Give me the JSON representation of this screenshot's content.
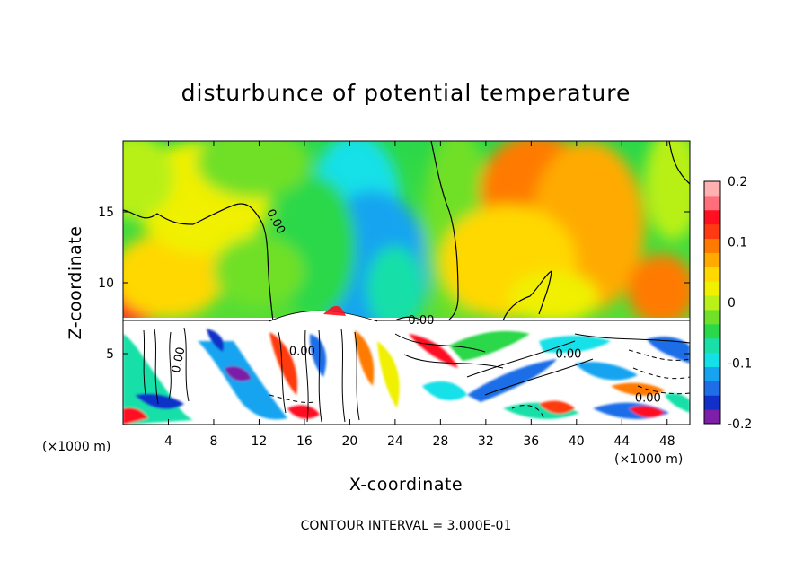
{
  "chart_data": {
    "type": "heatmap",
    "title": "disturbunce of potential temperature",
    "xlabel": "X-coordinate",
    "ylabel": "Z-coordinate",
    "x_unit": "(×1000 m)",
    "xlim": [
      0,
      50
    ],
    "ylim": [
      0,
      20
    ],
    "x_ticks": [
      {
        "value": 4,
        "label": "4"
      },
      {
        "value": 8,
        "label": "8"
      },
      {
        "value": 12,
        "label": "12"
      },
      {
        "value": 16,
        "label": "16"
      },
      {
        "value": 20,
        "label": "20"
      },
      {
        "value": 24,
        "label": "24"
      },
      {
        "value": 28,
        "label": "28"
      },
      {
        "value": 32,
        "label": "32"
      },
      {
        "value": 36,
        "label": "36"
      },
      {
        "value": 40,
        "label": "40"
      },
      {
        "value": 44,
        "label": "44"
      },
      {
        "value": 48,
        "label": "48"
      }
    ],
    "y_ticks": [
      {
        "value": 5,
        "label": "5"
      },
      {
        "value": 10,
        "label": "10"
      },
      {
        "value": 15,
        "label": "15"
      }
    ],
    "colorbar": {
      "range": [
        -0.2,
        0.2
      ],
      "ticks": [
        {
          "value": 0.2,
          "label": "0.2"
        },
        {
          "value": 0.1,
          "label": "0.1"
        },
        {
          "value": 0,
          "label": "0"
        },
        {
          "value": -0.1,
          "label": "-0.1"
        },
        {
          "value": -0.2,
          "label": "-0.2"
        }
      ],
      "colors": [
        "#7d1fa8",
        "#1030c8",
        "#1f6ee8",
        "#16a4f0",
        "#14e0e8",
        "#18e0a8",
        "#2ad84a",
        "#70e028",
        "#b8f018",
        "#f0f000",
        "#ffd800",
        "#ffaa00",
        "#ff7a00",
        "#ff3a10",
        "#ff0f20",
        "#ff6e7a",
        "#ffb0b0"
      ]
    },
    "contour_labels": [
      {
        "text": "0.00",
        "x": 13.2,
        "y": 14.2,
        "angle": 62
      },
      {
        "text": "0.00",
        "x": 5.2,
        "y": 4.5,
        "angle": -78
      },
      {
        "text": "0.00",
        "x": 15.8,
        "y": 4.9,
        "angle": 0
      },
      {
        "text": "0.00",
        "x": 26.3,
        "y": 7.1,
        "angle": 0
      },
      {
        "text": "0.00",
        "x": 39.3,
        "y": 4.7,
        "angle": 0
      },
      {
        "text": "0.00",
        "x": 46.3,
        "y": 1.6,
        "angle": 0
      }
    ],
    "blobs": [
      {
        "x": 20.5,
        "y": 15.5,
        "rx": 4.0,
        "ry": 5.0,
        "v": -0.09
      },
      {
        "x": 22.0,
        "y": 11.0,
        "rx": 5.0,
        "ry": 5.5,
        "v": -0.12
      },
      {
        "x": 24.0,
        "y": 9.6,
        "rx": 2.5,
        "ry": 3.0,
        "v": -0.06
      },
      {
        "x": 17.0,
        "y": 12.5,
        "rx": 3.5,
        "ry": 5.0,
        "v": -0.05
      },
      {
        "x": 29.5,
        "y": 14.0,
        "rx": 3.0,
        "ry": 7.0,
        "v": -0.03
      },
      {
        "x": 36.5,
        "y": 16.5,
        "rx": 5.0,
        "ry": 4.0,
        "v": 0.09
      },
      {
        "x": 41.0,
        "y": 14.0,
        "rx": 5.0,
        "ry": 6.0,
        "v": 0.06
      },
      {
        "x": 47.5,
        "y": 9.5,
        "rx": 3.0,
        "ry": 2.5,
        "v": 0.1
      },
      {
        "x": 34.0,
        "y": 11.5,
        "rx": 6.0,
        "ry": 4.0,
        "v": 0.04
      },
      {
        "x": 1.0,
        "y": 9.5,
        "rx": 2.8,
        "ry": 2.6,
        "v": 0.13
      },
      {
        "x": 4.0,
        "y": 10.5,
        "rx": 5.0,
        "ry": 3.0,
        "v": 0.05
      },
      {
        "x": 7.0,
        "y": 16.0,
        "rx": 6.0,
        "ry": 4.0,
        "v": 0.03
      },
      {
        "x": 11.5,
        "y": 18.5,
        "rx": 5.0,
        "ry": 2.5,
        "v": -0.02
      },
      {
        "x": 1.0,
        "y": 17.5,
        "rx": 3.5,
        "ry": 3.0,
        "v": -0.01
      },
      {
        "x": 48.5,
        "y": 17.0,
        "rx": 2.5,
        "ry": 4.0,
        "v": 0.01
      },
      {
        "x": 12.0,
        "y": 10.8,
        "rx": 4.0,
        "ry": 2.5,
        "v": -0.02
      },
      {
        "x": 38.0,
        "y": 9.0,
        "rx": 4.0,
        "ry": 1.8,
        "v": 0.02
      }
    ]
  }
}
